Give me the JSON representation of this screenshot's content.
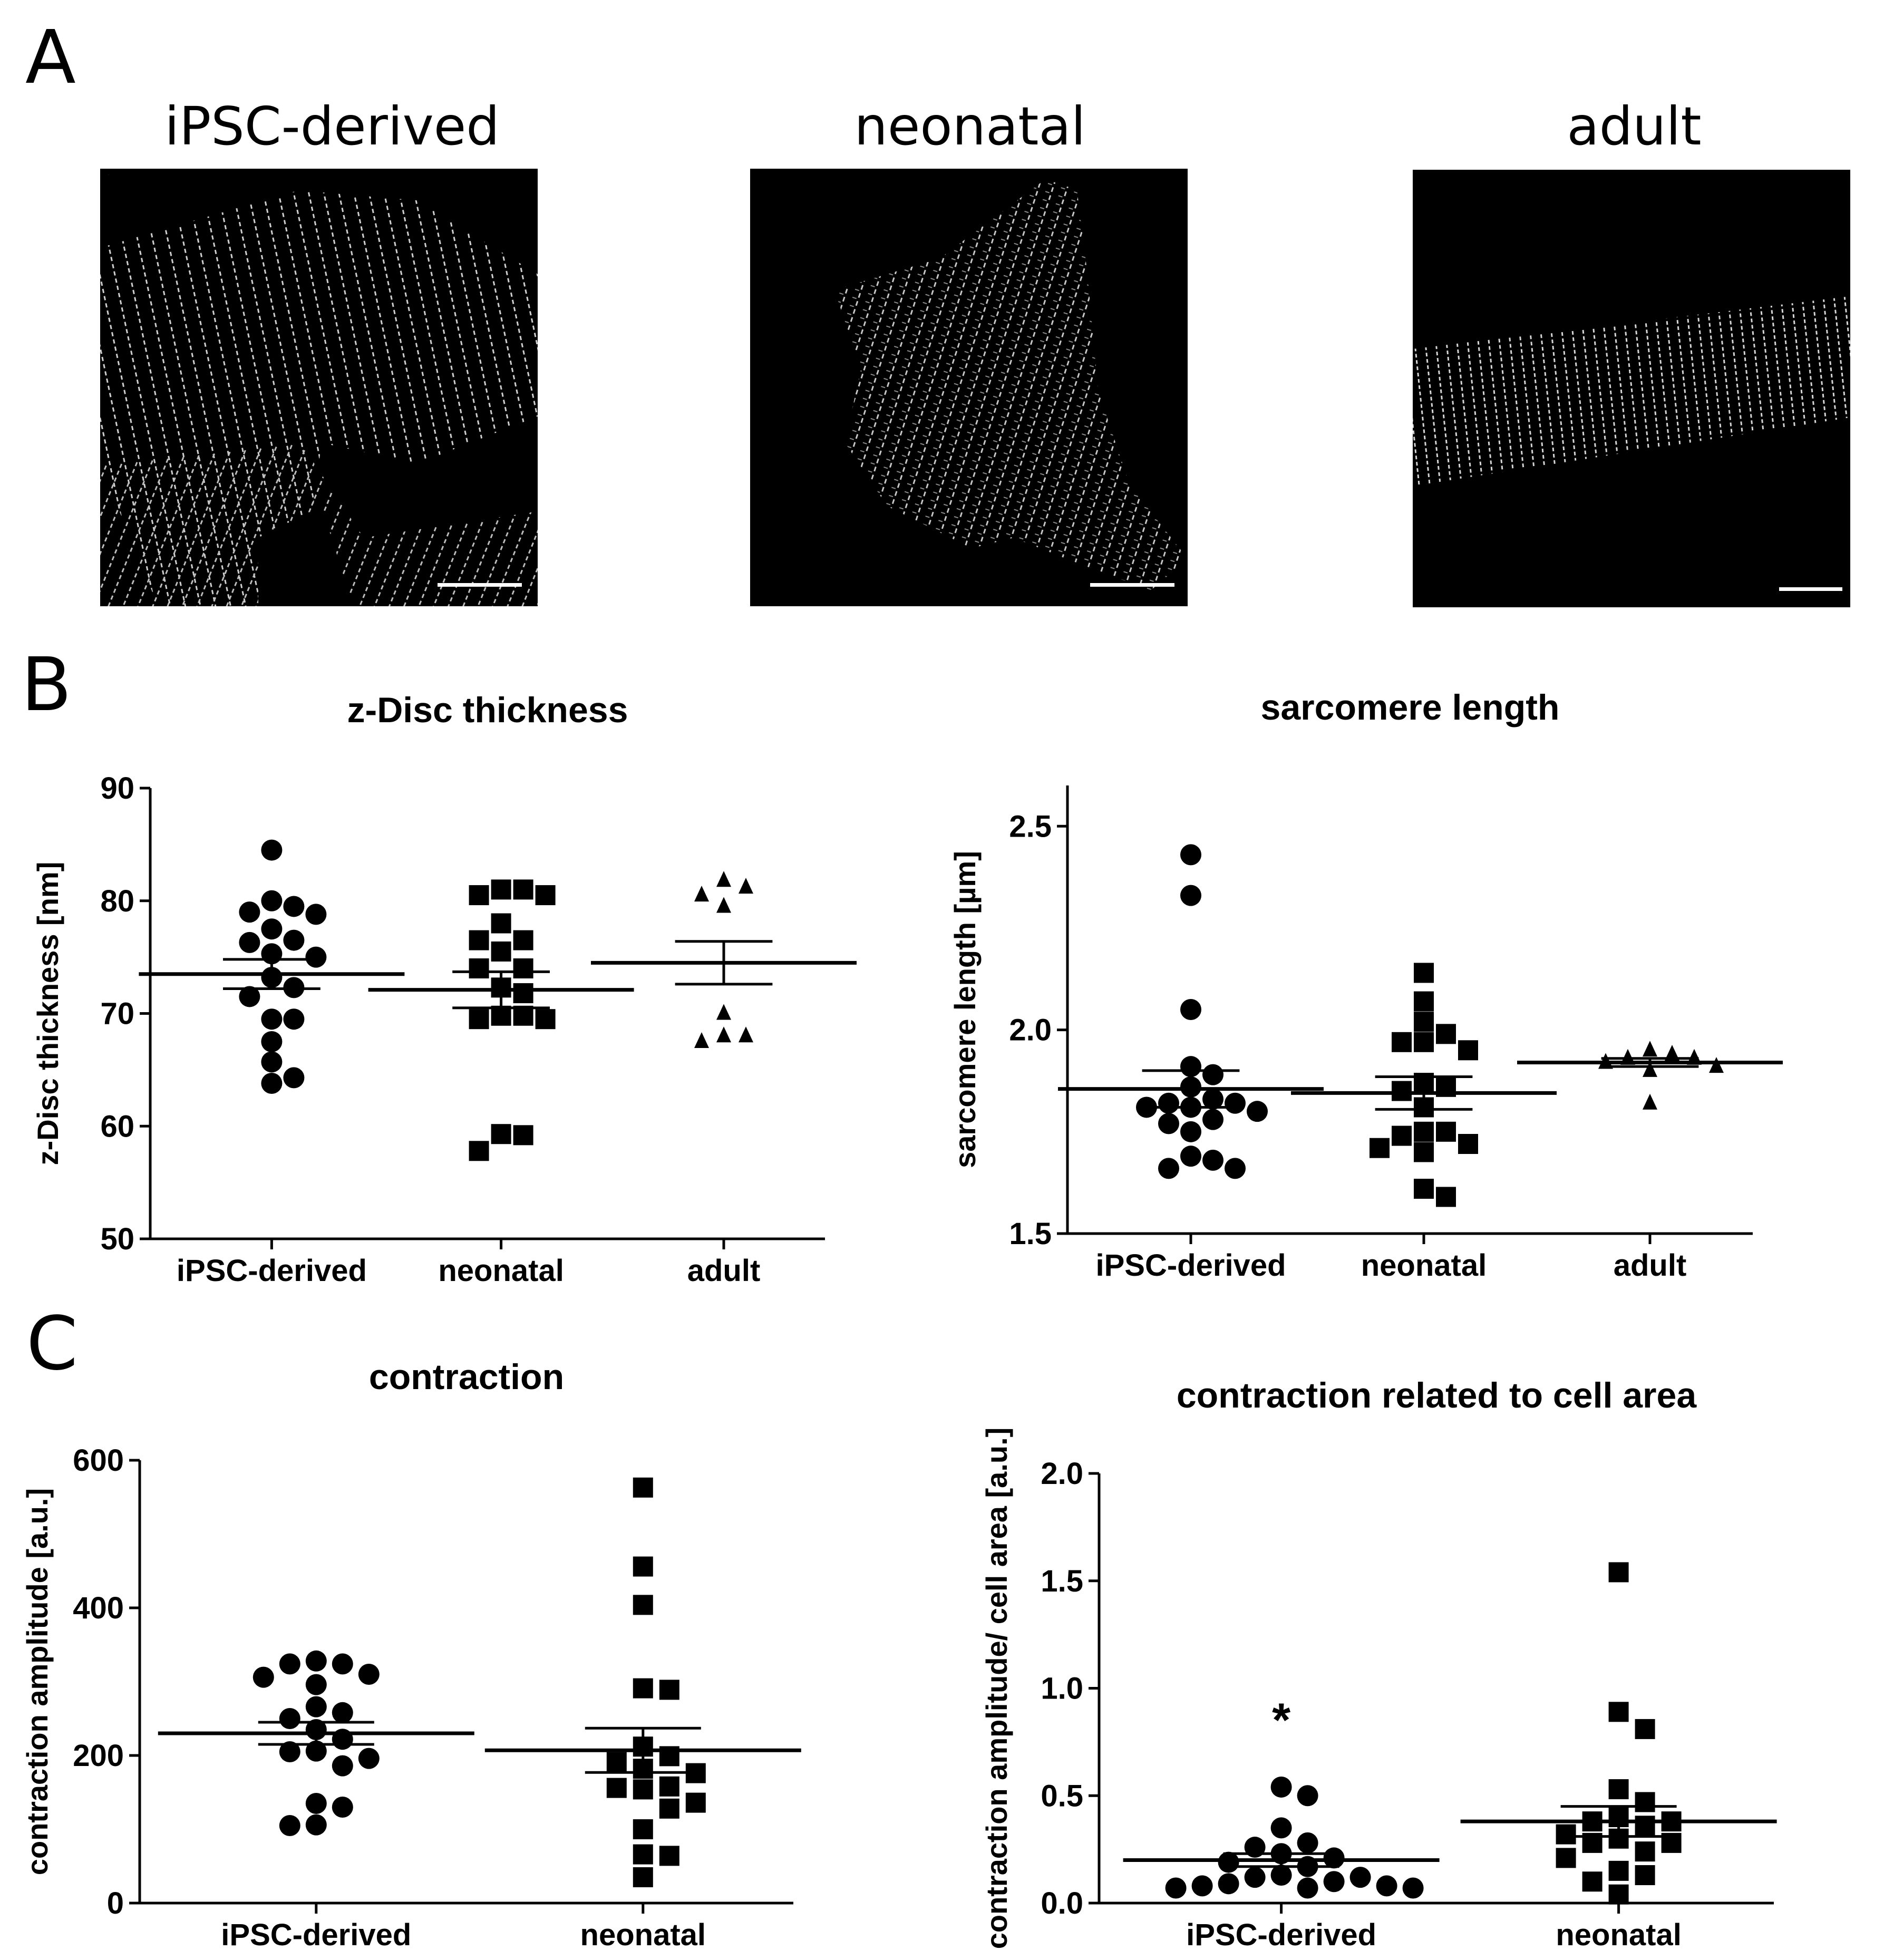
{
  "panels": {
    "A": "A",
    "B": "B",
    "C": "C"
  },
  "images": [
    {
      "title": "iPSC-derived",
      "pattern": "dense-striations"
    },
    {
      "title": "neonatal",
      "pattern": "irregular-striations"
    },
    {
      "title": "adult",
      "pattern": "aligned-striations"
    }
  ],
  "chart_data": [
    {
      "type": "scatter",
      "title": "z-Disc thickness",
      "ylabel": "z-Disc thickness [nm]",
      "xlabel": "",
      "ylim": [
        50,
        90
      ],
      "yticks": [
        50,
        60,
        70,
        80,
        90
      ],
      "ytick_labels": [
        "50",
        "60",
        "70",
        "80",
        "90"
      ],
      "categories": [
        "iPSC-derived",
        "neonatal",
        "adult"
      ],
      "series": [
        {
          "category": "iPSC-derived",
          "marker": "circle",
          "mean": 73.5,
          "sem": 1.3,
          "values": [
            84.5,
            80,
            79.5,
            79,
            78.8,
            77.5,
            76.5,
            76.3,
            75.3,
            75,
            73.2,
            72.3,
            71.5,
            69.5,
            69.5,
            67.5,
            65.7,
            64.3,
            63.8
          ]
        },
        {
          "category": "neonatal",
          "marker": "square",
          "mean": 72.1,
          "sem": 1.6,
          "values": [
            81,
            81,
            80.5,
            80.5,
            78,
            76.5,
            76.5,
            75.5,
            74,
            74,
            72.3,
            71.8,
            69.8,
            69.8,
            69.5,
            69.5,
            59.3,
            59.2,
            57.8
          ]
        },
        {
          "category": "adult",
          "marker": "triangle",
          "mean": 74.5,
          "sem": 1.9,
          "values": [
            81.8,
            81.2,
            80.5,
            79.5,
            70,
            68,
            68,
            67.5
          ]
        }
      ]
    },
    {
      "type": "scatter",
      "title": "sarcomere length",
      "ylabel": "sarcomere length [µm]",
      "xlabel": "",
      "ylim": [
        1.5,
        2.6
      ],
      "yticks": [
        1.5,
        2.0,
        2.5
      ],
      "ytick_labels": [
        "1.5",
        "2.0",
        "2.5"
      ],
      "categories": [
        "iPSC-derived",
        "neonatal",
        "adult"
      ],
      "series": [
        {
          "category": "iPSC-derived",
          "marker": "circle",
          "mean": 1.855,
          "sem": 0.045,
          "values": [
            2.43,
            2.33,
            2.05,
            1.91,
            1.89,
            1.86,
            1.83,
            1.82,
            1.82,
            1.81,
            1.81,
            1.8,
            1.78,
            1.77,
            1.75,
            1.69,
            1.68,
            1.66,
            1.66
          ]
        },
        {
          "category": "neonatal",
          "marker": "square",
          "mean": 1.845,
          "sem": 0.04,
          "values": [
            2.14,
            2.07,
            2.02,
            1.99,
            1.97,
            1.97,
            1.95,
            1.87,
            1.86,
            1.85,
            1.81,
            1.75,
            1.75,
            1.74,
            1.72,
            1.71,
            1.7,
            1.61,
            1.59
          ]
        },
        {
          "category": "adult",
          "marker": "triangle",
          "mean": 1.92,
          "sem": 0.01,
          "values": [
            1.95,
            1.94,
            1.93,
            1.93,
            1.92,
            1.91,
            1.9,
            1.82
          ]
        }
      ]
    },
    {
      "type": "scatter",
      "title": "contraction",
      "ylabel": "contraction amplitude [a.u.]",
      "xlabel": "",
      "ylim": [
        0,
        600
      ],
      "yticks": [
        0,
        200,
        400,
        600
      ],
      "ytick_labels": [
        "0",
        "200",
        "400",
        "600"
      ],
      "categories": [
        "iPSC-derived",
        "neonatal"
      ],
      "series": [
        {
          "category": "iPSC-derived",
          "marker": "circle",
          "mean": 230,
          "sem": 15,
          "values": [
            328,
            324,
            324,
            310,
            306,
            296,
            266,
            258,
            250,
            235,
            222,
            206,
            205,
            196,
            186,
            135,
            130,
            106,
            105
          ]
        },
        {
          "category": "neonatal",
          "marker": "square",
          "mean": 207,
          "sem": 30,
          "values": [
            563,
            456,
            404,
            291,
            289,
            212,
            199,
            191,
            182,
            176,
            158,
            156,
            154,
            136,
            128,
            100,
            66,
            64,
            35
          ]
        }
      ]
    },
    {
      "type": "scatter",
      "title": "contraction related to cell area",
      "ylabel": "contraction amplitude/  cell area [a.u.]",
      "xlabel": "",
      "ylim": [
        0,
        2.0
      ],
      "yticks": [
        0.0,
        0.5,
        1.0,
        1.5,
        2.0
      ],
      "ytick_labels": [
        "0.0",
        "0.5",
        "1.0",
        "1.5",
        "2.0"
      ],
      "categories": [
        "iPSC-derived",
        "neonatal"
      ],
      "annotations": [
        {
          "category": "iPSC-derived",
          "text": "*",
          "y": 0.85
        }
      ],
      "series": [
        {
          "category": "iPSC-derived",
          "marker": "circle",
          "mean": 0.2,
          "sem": 0.03,
          "values": [
            0.54,
            0.5,
            0.35,
            0.28,
            0.26,
            0.23,
            0.21,
            0.19,
            0.17,
            0.13,
            0.12,
            0.12,
            0.1,
            0.09,
            0.08,
            0.08,
            0.07,
            0.07,
            0.07
          ]
        },
        {
          "category": "neonatal",
          "marker": "square",
          "mean": 0.38,
          "sem": 0.07,
          "values": [
            1.54,
            0.89,
            0.81,
            0.53,
            0.47,
            0.4,
            0.38,
            0.38,
            0.36,
            0.32,
            0.3,
            0.28,
            0.28,
            0.24,
            0.21,
            0.15,
            0.13,
            0.1,
            0.04
          ]
        }
      ]
    }
  ]
}
